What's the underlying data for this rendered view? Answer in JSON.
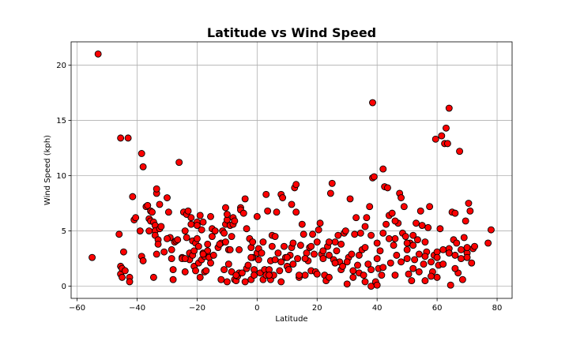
{
  "chart_data": {
    "type": "scatter",
    "title": "Latitude vs Wind Speed",
    "xlabel": "Latitude",
    "ylabel": "Wind Speed (kph)",
    "xlim": [
      -62,
      85
    ],
    "ylim": [
      -1.1,
      22.1
    ],
    "xticks": [
      -60,
      -40,
      -20,
      0,
      20,
      40,
      60,
      80
    ],
    "yticks": [
      0,
      5,
      10,
      15,
      20
    ],
    "grid": true,
    "marker_color": "#ff0000",
    "marker_edge": "#000000",
    "points": [
      [
        -55,
        2.6
      ],
      [
        -53,
        21.0
      ],
      [
        -46,
        4.7
      ],
      [
        -45.5,
        13.4
      ],
      [
        -45.5,
        1.8
      ],
      [
        -45.5,
        1.1
      ],
      [
        -45,
        0.8
      ],
      [
        -45,
        1.6
      ],
      [
        -44.5,
        3.1
      ],
      [
        -43,
        13.4
      ],
      [
        -42.5,
        0.8
      ],
      [
        -42.5,
        0.4
      ],
      [
        -41.5,
        8.1
      ],
      [
        -41,
        6.0
      ],
      [
        -40.5,
        6.2
      ],
      [
        -39,
        5.0
      ],
      [
        -38.5,
        12.0
      ],
      [
        -38.5,
        2.7
      ],
      [
        -38,
        10.8
      ],
      [
        -38,
        2.3
      ],
      [
        -37,
        7.2
      ],
      [
        -36.5,
        7.3
      ],
      [
        -36,
        6.1
      ],
      [
        -35.5,
        5.9
      ],
      [
        -35.5,
        6.8
      ],
      [
        -35,
        6.7
      ],
      [
        -34.5,
        0.8
      ],
      [
        -34.5,
        5.8
      ],
      [
        -34,
        5.5
      ],
      [
        -34,
        5.0
      ],
      [
        -34,
        4.6
      ],
      [
        -33.5,
        8.4
      ],
      [
        -33.5,
        8.8
      ],
      [
        -33.5,
        2.9
      ],
      [
        -33,
        4.2
      ],
      [
        -33,
        3.8
      ],
      [
        -32.5,
        7.4
      ],
      [
        -32.5,
        5.2
      ],
      [
        -32,
        5.4
      ],
      [
        -31,
        3.1
      ],
      [
        -30,
        8.0
      ],
      [
        -29.5,
        6.7
      ],
      [
        -29,
        4.4
      ],
      [
        -28.5,
        3.3
      ],
      [
        -28.5,
        2.5
      ],
      [
        -28,
        0.6
      ],
      [
        -28,
        1.5
      ],
      [
        -27.5,
        4.0
      ],
      [
        -27,
        4.1
      ],
      [
        -26.5,
        4.2
      ],
      [
        -26,
        11.2
      ],
      [
        -25,
        2.6
      ],
      [
        -24.5,
        6.7
      ],
      [
        -24,
        1.3
      ],
      [
        -24,
        5.0
      ],
      [
        -23.5,
        4.4
      ],
      [
        -23.5,
        6.5
      ],
      [
        -23,
        6.8
      ],
      [
        -22.5,
        3.0
      ],
      [
        -22.5,
        2.4
      ],
      [
        -22,
        6.2
      ],
      [
        -22,
        5.6
      ],
      [
        -21.5,
        2.8
      ],
      [
        -21.5,
        4.1
      ],
      [
        -21,
        1.8
      ],
      [
        -21,
        3.2
      ],
      [
        -20.5,
        3.9
      ],
      [
        -20.5,
        1.4
      ],
      [
        -20,
        5.8
      ],
      [
        -20,
        4.3
      ],
      [
        -19.5,
        2.1
      ],
      [
        -19.5,
        3.6
      ],
      [
        -19,
        0.8
      ],
      [
        -19,
        6.4
      ],
      [
        -18.5,
        5.1
      ],
      [
        -18.5,
        2.4
      ],
      [
        -18,
        3.0
      ],
      [
        -18,
        5.8
      ],
      [
        -17.5,
        1.3
      ],
      [
        -17.5,
        2.7
      ],
      [
        -17,
        1.4
      ],
      [
        -16.5,
        3.8
      ],
      [
        -16.5,
        3.2
      ],
      [
        -16,
        2.7
      ],
      [
        -16,
        2.6
      ],
      [
        -15.5,
        6.3
      ],
      [
        -15.5,
        2.1
      ],
      [
        -15,
        4.5
      ],
      [
        -15,
        5.2
      ],
      [
        -14.5,
        2.8
      ],
      [
        -14,
        5.0
      ],
      [
        -13,
        3.5
      ],
      [
        -12,
        0.6
      ],
      [
        -12,
        3.9
      ],
      [
        -11.5,
        5.0
      ],
      [
        -11,
        4.8
      ],
      [
        -11,
        1.5
      ],
      [
        -10.5,
        4.0
      ],
      [
        -10.5,
        7.1
      ],
      [
        -10.5,
        5.6
      ],
      [
        -10,
        0.4
      ],
      [
        -10,
        6.0
      ],
      [
        -9.5,
        2.0
      ],
      [
        -9.5,
        3.3
      ],
      [
        -9,
        5.5
      ],
      [
        -9,
        3.3
      ],
      [
        -8.5,
        4.5
      ],
      [
        -8.5,
        1.3
      ],
      [
        -8,
        5.6
      ],
      [
        -8,
        6.2
      ],
      [
        -7.5,
        5.9
      ],
      [
        -7.5,
        0.6
      ],
      [
        -7,
        0.5
      ],
      [
        -6.5,
        0.9
      ],
      [
        -6,
        1.2
      ],
      [
        -6,
        3.3
      ],
      [
        -5.5,
        7.1
      ],
      [
        -5.5,
        6.9
      ],
      [
        -5,
        1.2
      ],
      [
        -4.5,
        6.6
      ],
      [
        -4,
        7.9
      ],
      [
        -4,
        0.4
      ],
      [
        -3.5,
        1.6
      ],
      [
        -3.5,
        5.2
      ],
      [
        -3,
        1.9
      ],
      [
        -2.5,
        4.3
      ],
      [
        -2,
        0.6
      ],
      [
        -2,
        3.5
      ],
      [
        -1.5,
        4.0
      ],
      [
        -1.5,
        2.6
      ],
      [
        -1,
        1.5
      ],
      [
        -1,
        1.0
      ],
      [
        0,
        6.3
      ],
      [
        0,
        3.0
      ],
      [
        0.5,
        3.4
      ],
      [
        1,
        1.2
      ],
      [
        1.5,
        3.0
      ],
      [
        2,
        0.6
      ],
      [
        2.5,
        1.5
      ],
      [
        3,
        1.0
      ],
      [
        3,
        8.3
      ],
      [
        3.5,
        6.8
      ],
      [
        4,
        1.5
      ],
      [
        4.5,
        2.3
      ],
      [
        4.5,
        0.6
      ],
      [
        5,
        3.6
      ],
      [
        5,
        4.6
      ],
      [
        5.5,
        1.0
      ],
      [
        6,
        2.4
      ],
      [
        6.5,
        6.7
      ],
      [
        7,
        3.0
      ],
      [
        7.5,
        1.4
      ],
      [
        8,
        8.3
      ],
      [
        8,
        0.4
      ],
      [
        8.5,
        8.0
      ],
      [
        9,
        3.6
      ],
      [
        9.5,
        2.6
      ],
      [
        10,
        1.8
      ],
      [
        10.5,
        1.5
      ],
      [
        11,
        2.8
      ],
      [
        11.5,
        7.4
      ],
      [
        11.5,
        3.5
      ],
      [
        12,
        2.0
      ],
      [
        12.5,
        8.9
      ],
      [
        13,
        6.7
      ],
      [
        13,
        9.2
      ],
      [
        13.5,
        2.5
      ],
      [
        14,
        0.8
      ],
      [
        14.5,
        3.7
      ],
      [
        15,
        5.6
      ],
      [
        15.5,
        4.7
      ],
      [
        16,
        1.0
      ],
      [
        16.5,
        3.0
      ],
      [
        17,
        2.3
      ],
      [
        17.5,
        3.5
      ],
      [
        18,
        1.4
      ],
      [
        18.5,
        4.7
      ],
      [
        19,
        2.9
      ],
      [
        19.5,
        1.3
      ],
      [
        20,
        4.0
      ],
      [
        20.5,
        5.1
      ],
      [
        21,
        5.7
      ],
      [
        21.5,
        2.9
      ],
      [
        22,
        2.5
      ],
      [
        22.5,
        1.0
      ],
      [
        23,
        0.5
      ],
      [
        23.5,
        3.6
      ],
      [
        24,
        0.8
      ],
      [
        24.5,
        8.4
      ],
      [
        25,
        9.3
      ],
      [
        25.5,
        2.4
      ],
      [
        26,
        4.0
      ],
      [
        26.5,
        3.2
      ],
      [
        27,
        4.6
      ],
      [
        27.5,
        2.2
      ],
      [
        28,
        1.5
      ],
      [
        28.5,
        1.8
      ],
      [
        29,
        4.8
      ],
      [
        29.5,
        5.0
      ],
      [
        30,
        0.2
      ],
      [
        30.5,
        2.6
      ],
      [
        31,
        7.9
      ],
      [
        31.5,
        2.9
      ],
      [
        32,
        0.8
      ],
      [
        32.5,
        4.7
      ],
      [
        33,
        6.2
      ],
      [
        33.5,
        1.9
      ],
      [
        34,
        1.2
      ],
      [
        34.5,
        4.8
      ],
      [
        35,
        3.3
      ],
      [
        35.5,
        1.0
      ],
      [
        36,
        5.4
      ],
      [
        36.5,
        6.2
      ],
      [
        37,
        2.0
      ],
      [
        37.5,
        7.2
      ],
      [
        38,
        4.6
      ],
      [
        38.5,
        9.8
      ],
      [
        38.5,
        16.6
      ],
      [
        39,
        9.9
      ],
      [
        39.5,
        0.4
      ],
      [
        40,
        2.5
      ],
      [
        40.5,
        1.6
      ],
      [
        41,
        3.2
      ],
      [
        41.5,
        1.0
      ],
      [
        42,
        10.6
      ],
      [
        42.5,
        9.0
      ],
      [
        43,
        5.6
      ],
      [
        43.5,
        8.9
      ],
      [
        44,
        6.4
      ],
      [
        44.5,
        2.1
      ],
      [
        45,
        6.6
      ],
      [
        45.5,
        3.7
      ],
      [
        46,
        4.3
      ],
      [
        46.5,
        2.8
      ],
      [
        47,
        5.7
      ],
      [
        47.5,
        8.4
      ],
      [
        48,
        8.0
      ],
      [
        48.5,
        4.8
      ],
      [
        49,
        7.2
      ],
      [
        49.5,
        4.5
      ],
      [
        50,
        2.5
      ],
      [
        50.5,
        1.1
      ],
      [
        51,
        3.9
      ],
      [
        51.5,
        0.5
      ],
      [
        52,
        4.6
      ],
      [
        52.5,
        2.4
      ],
      [
        53,
        5.7
      ],
      [
        53.5,
        4.2
      ],
      [
        54,
        1.3
      ],
      [
        54.5,
        6.8
      ],
      [
        55,
        5.5
      ],
      [
        55.5,
        2.0
      ],
      [
        56,
        0.5
      ],
      [
        56.5,
        3.1
      ],
      [
        57,
        5.3
      ],
      [
        57.5,
        7.2
      ],
      [
        58,
        2.2
      ],
      [
        58.5,
        1.3
      ],
      [
        59,
        2.8
      ],
      [
        59.5,
        13.3
      ],
      [
        60,
        0.8
      ],
      [
        60.5,
        1.9
      ],
      [
        61,
        5.2
      ],
      [
        61.5,
        13.6
      ],
      [
        62,
        3.3
      ],
      [
        62.5,
        12.9
      ],
      [
        63,
        14.3
      ],
      [
        63.5,
        12.9
      ],
      [
        64,
        16.1
      ],
      [
        64.5,
        0.1
      ],
      [
        65,
        6.7
      ],
      [
        65.5,
        4.2
      ],
      [
        66,
        2.8
      ],
      [
        66.5,
        3.9
      ],
      [
        67,
        1.2
      ],
      [
        67.5,
        12.2
      ],
      [
        68,
        3.3
      ],
      [
        68.5,
        0.6
      ],
      [
        69,
        4.4
      ],
      [
        69.5,
        5.9
      ],
      [
        70,
        3.0
      ],
      [
        70.5,
        7.5
      ],
      [
        71,
        6.8
      ],
      [
        71.5,
        2.1
      ],
      [
        72,
        3.4
      ],
      [
        72.5,
        3.6
      ],
      [
        77,
        3.9
      ],
      [
        78,
        5.1
      ],
      [
        -44,
        1.4
      ],
      [
        -36,
        5.0
      ],
      [
        -30,
        4.3
      ],
      [
        -25,
        2.5
      ],
      [
        -12.5,
        3.8
      ],
      [
        -7,
        1.0
      ],
      [
        0.5,
        2.4
      ],
      [
        6,
        4.5
      ],
      [
        10,
        2.6
      ],
      [
        14,
        1.0
      ],
      [
        18,
        3.6
      ],
      [
        22,
        3.2
      ],
      [
        26,
        2.1
      ],
      [
        30,
        2.2
      ],
      [
        34,
        2.8
      ],
      [
        38,
        1.5
      ],
      [
        40,
        3.9
      ],
      [
        42,
        1.7
      ],
      [
        44,
        4.3
      ],
      [
        46,
        1.0
      ],
      [
        48,
        2.2
      ],
      [
        50,
        3.3
      ],
      [
        52,
        1.6
      ],
      [
        54,
        2.9
      ],
      [
        56,
        4.0
      ],
      [
        58,
        0.9
      ],
      [
        60,
        3.1
      ],
      [
        62,
        2.0
      ],
      [
        64,
        3.4
      ],
      [
        66,
        1.6
      ],
      [
        68,
        2.5
      ],
      [
        70,
        3.5
      ],
      [
        36,
        3.5
      ],
      [
        32,
        1.4
      ],
      [
        28,
        3.8
      ],
      [
        24,
        2.8
      ],
      [
        20,
        1.1
      ],
      [
        16,
        2.5
      ],
      [
        12,
        3.9
      ],
      [
        8,
        2.2
      ],
      [
        4,
        1.0
      ],
      [
        -2,
        2.6
      ],
      [
        -18,
        2.9
      ],
      [
        -24,
        2.5
      ],
      [
        -20,
        5.5
      ],
      [
        -10,
        6.5
      ],
      [
        2,
        4.0
      ],
      [
        24,
        4.0
      ],
      [
        36,
        0.4
      ],
      [
        38,
        0.0
      ],
      [
        40,
        0.1
      ],
      [
        42,
        4.8
      ],
      [
        46,
        5.9
      ],
      [
        50,
        3.9
      ],
      [
        52,
        3.7
      ],
      [
        56,
        2.7
      ],
      [
        60,
        2.6
      ],
      [
        64,
        3.0
      ],
      [
        66,
        6.6
      ],
      [
        70,
        2.6
      ]
    ]
  }
}
